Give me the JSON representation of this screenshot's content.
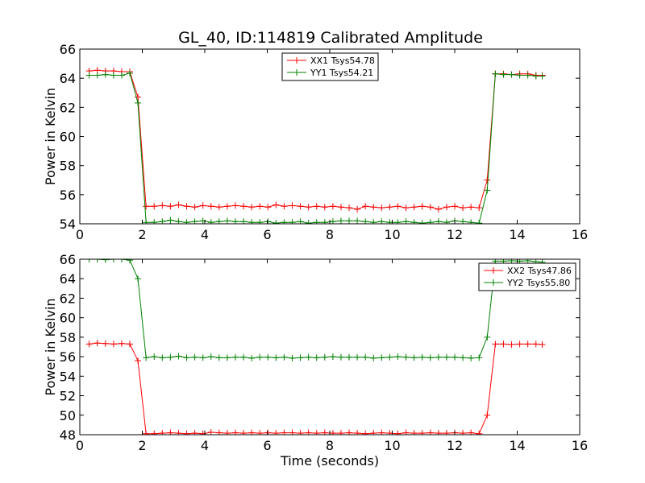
{
  "figure": {
    "title": "GL_40, ID:114819 Calibrated Amplitude"
  },
  "chart_data": [
    {
      "type": "line",
      "title": "GL_40, ID:114819 Calibrated Amplitude",
      "xlabel": "",
      "ylabel": "Power in Kelvin",
      "xlim": [
        0,
        16
      ],
      "ylim": [
        54,
        66
      ],
      "xticks": [
        "0",
        "2",
        "4",
        "6",
        "8",
        "10",
        "12",
        "14",
        "16"
      ],
      "yticks": [
        "54",
        "56",
        "58",
        "60",
        "62",
        "64",
        "66"
      ],
      "legend_position": "upper-center",
      "series": [
        {
          "name": "XX1 Tsys54.78",
          "color": "#ff0000",
          "x": [
            0.3,
            0.56,
            0.82,
            1.08,
            1.34,
            1.6,
            1.86,
            2.12,
            2.38,
            2.64,
            2.9,
            3.16,
            3.42,
            3.68,
            3.94,
            4.2,
            4.46,
            4.72,
            4.98,
            5.24,
            5.5,
            5.76,
            6.02,
            6.28,
            6.54,
            6.8,
            7.06,
            7.32,
            7.58,
            7.84,
            8.1,
            8.36,
            8.62,
            8.88,
            9.14,
            9.4,
            9.66,
            9.92,
            10.18,
            10.44,
            10.7,
            10.96,
            11.22,
            11.48,
            11.74,
            12.0,
            12.26,
            12.52,
            12.78,
            13.04,
            13.3,
            13.56,
            13.82,
            14.08,
            14.34,
            14.6,
            14.8
          ],
          "y": [
            64.5,
            64.55,
            64.5,
            64.5,
            64.45,
            64.45,
            62.7,
            55.2,
            55.2,
            55.25,
            55.2,
            55.3,
            55.2,
            55.15,
            55.25,
            55.2,
            55.15,
            55.2,
            55.25,
            55.2,
            55.15,
            55.2,
            55.15,
            55.3,
            55.2,
            55.25,
            55.2,
            55.15,
            55.2,
            55.15,
            55.2,
            55.15,
            55.1,
            55.0,
            55.2,
            55.15,
            55.1,
            55.15,
            55.2,
            55.1,
            55.15,
            55.2,
            55.15,
            55.0,
            55.15,
            55.2,
            55.1,
            55.15,
            55.1,
            57.0,
            64.3,
            64.3,
            64.25,
            64.3,
            64.3,
            64.2,
            64.2
          ]
        },
        {
          "name": "YY1 Tsys54.21",
          "color": "#008000",
          "x": [
            0.3,
            0.56,
            0.82,
            1.08,
            1.34,
            1.6,
            1.86,
            2.12,
            2.38,
            2.64,
            2.9,
            3.16,
            3.42,
            3.68,
            3.94,
            4.2,
            4.46,
            4.72,
            4.98,
            5.24,
            5.5,
            5.76,
            6.02,
            6.28,
            6.54,
            6.8,
            7.06,
            7.32,
            7.58,
            7.84,
            8.1,
            8.36,
            8.62,
            8.88,
            9.14,
            9.4,
            9.66,
            9.92,
            10.18,
            10.44,
            10.7,
            10.96,
            11.22,
            11.48,
            11.74,
            12.0,
            12.26,
            12.52,
            12.78,
            13.04,
            13.3,
            13.56,
            13.82,
            14.08,
            14.34,
            14.6,
            14.8
          ],
          "y": [
            64.2,
            64.2,
            64.25,
            64.2,
            64.2,
            64.35,
            62.3,
            54.1,
            54.1,
            54.15,
            54.25,
            54.15,
            54.1,
            54.15,
            54.2,
            54.1,
            54.15,
            54.2,
            54.15,
            54.15,
            54.1,
            54.1,
            54.15,
            54.05,
            54.1,
            54.1,
            54.15,
            54.05,
            54.1,
            54.1,
            54.15,
            54.2,
            54.2,
            54.2,
            54.15,
            54.1,
            54.15,
            54.1,
            54.1,
            54.15,
            54.1,
            54.05,
            54.1,
            54.15,
            54.1,
            54.2,
            54.15,
            54.1,
            54.05,
            56.3,
            64.3,
            64.25,
            64.25,
            64.2,
            64.2,
            64.15,
            64.15
          ]
        }
      ]
    },
    {
      "type": "line",
      "title": "",
      "xlabel": "Time (seconds)",
      "ylabel": "Power in Kelvin",
      "xlim": [
        0,
        16
      ],
      "ylim": [
        48,
        66
      ],
      "xticks": [
        "0",
        "2",
        "4",
        "6",
        "8",
        "10",
        "12",
        "14",
        "16"
      ],
      "yticks": [
        "48",
        "50",
        "52",
        "54",
        "56",
        "58",
        "60",
        "62",
        "64",
        "66"
      ],
      "legend_position": "upper-right",
      "series": [
        {
          "name": "XX2 Tsys47.86",
          "color": "#ff0000",
          "x": [
            0.3,
            0.56,
            0.82,
            1.08,
            1.34,
            1.6,
            1.86,
            2.12,
            2.38,
            2.64,
            2.9,
            3.16,
            3.42,
            3.68,
            3.94,
            4.2,
            4.46,
            4.72,
            4.98,
            5.24,
            5.5,
            5.76,
            6.02,
            6.28,
            6.54,
            6.8,
            7.06,
            7.32,
            7.58,
            7.84,
            8.1,
            8.36,
            8.62,
            8.88,
            9.14,
            9.4,
            9.66,
            9.92,
            10.18,
            10.44,
            10.7,
            10.96,
            11.22,
            11.48,
            11.74,
            12.0,
            12.26,
            12.52,
            12.78,
            13.04,
            13.3,
            13.56,
            13.82,
            14.08,
            14.34,
            14.6,
            14.8
          ],
          "y": [
            57.3,
            57.4,
            57.35,
            57.3,
            57.35,
            57.3,
            55.6,
            48.1,
            48.1,
            48.15,
            48.2,
            48.15,
            48.1,
            48.15,
            48.1,
            48.25,
            48.2,
            48.15,
            48.2,
            48.15,
            48.2,
            48.15,
            48.2,
            48.15,
            48.2,
            48.2,
            48.15,
            48.2,
            48.15,
            48.2,
            48.15,
            48.15,
            48.2,
            48.15,
            48.1,
            48.15,
            48.2,
            48.15,
            48.1,
            48.2,
            48.15,
            48.15,
            48.2,
            48.15,
            48.15,
            48.2,
            48.15,
            48.2,
            48.1,
            50.0,
            57.3,
            57.3,
            57.25,
            57.3,
            57.3,
            57.3,
            57.25
          ]
        },
        {
          "name": "YY2 Tsys55.80",
          "color": "#008000",
          "x": [
            0.3,
            0.56,
            0.82,
            1.08,
            1.34,
            1.6,
            1.86,
            2.12,
            2.38,
            2.64,
            2.9,
            3.16,
            3.42,
            3.68,
            3.94,
            4.2,
            4.46,
            4.72,
            4.98,
            5.24,
            5.5,
            5.76,
            6.02,
            6.28,
            6.54,
            6.8,
            7.06,
            7.32,
            7.58,
            7.84,
            8.1,
            8.36,
            8.62,
            8.88,
            9.14,
            9.4,
            9.66,
            9.92,
            10.18,
            10.44,
            10.7,
            10.96,
            11.22,
            11.48,
            11.74,
            12.0,
            12.26,
            12.52,
            12.78,
            13.04,
            13.3,
            13.56,
            13.82,
            14.08,
            14.34,
            14.6,
            14.8
          ],
          "y": [
            66.0,
            66.0,
            65.95,
            66.0,
            66.0,
            65.9,
            64.0,
            55.9,
            56.0,
            55.9,
            55.95,
            56.05,
            55.9,
            55.95,
            55.9,
            56.0,
            55.9,
            55.9,
            55.95,
            55.95,
            55.85,
            55.95,
            55.95,
            55.9,
            55.95,
            55.85,
            55.9,
            55.95,
            55.9,
            55.95,
            56.0,
            55.95,
            55.95,
            55.95,
            55.95,
            55.85,
            55.9,
            55.95,
            56.0,
            55.95,
            55.9,
            55.95,
            55.9,
            55.95,
            55.95,
            55.95,
            55.9,
            55.85,
            55.9,
            58.0,
            65.8,
            65.8,
            65.85,
            65.8,
            65.85,
            65.75,
            65.7
          ]
        }
      ]
    }
  ]
}
